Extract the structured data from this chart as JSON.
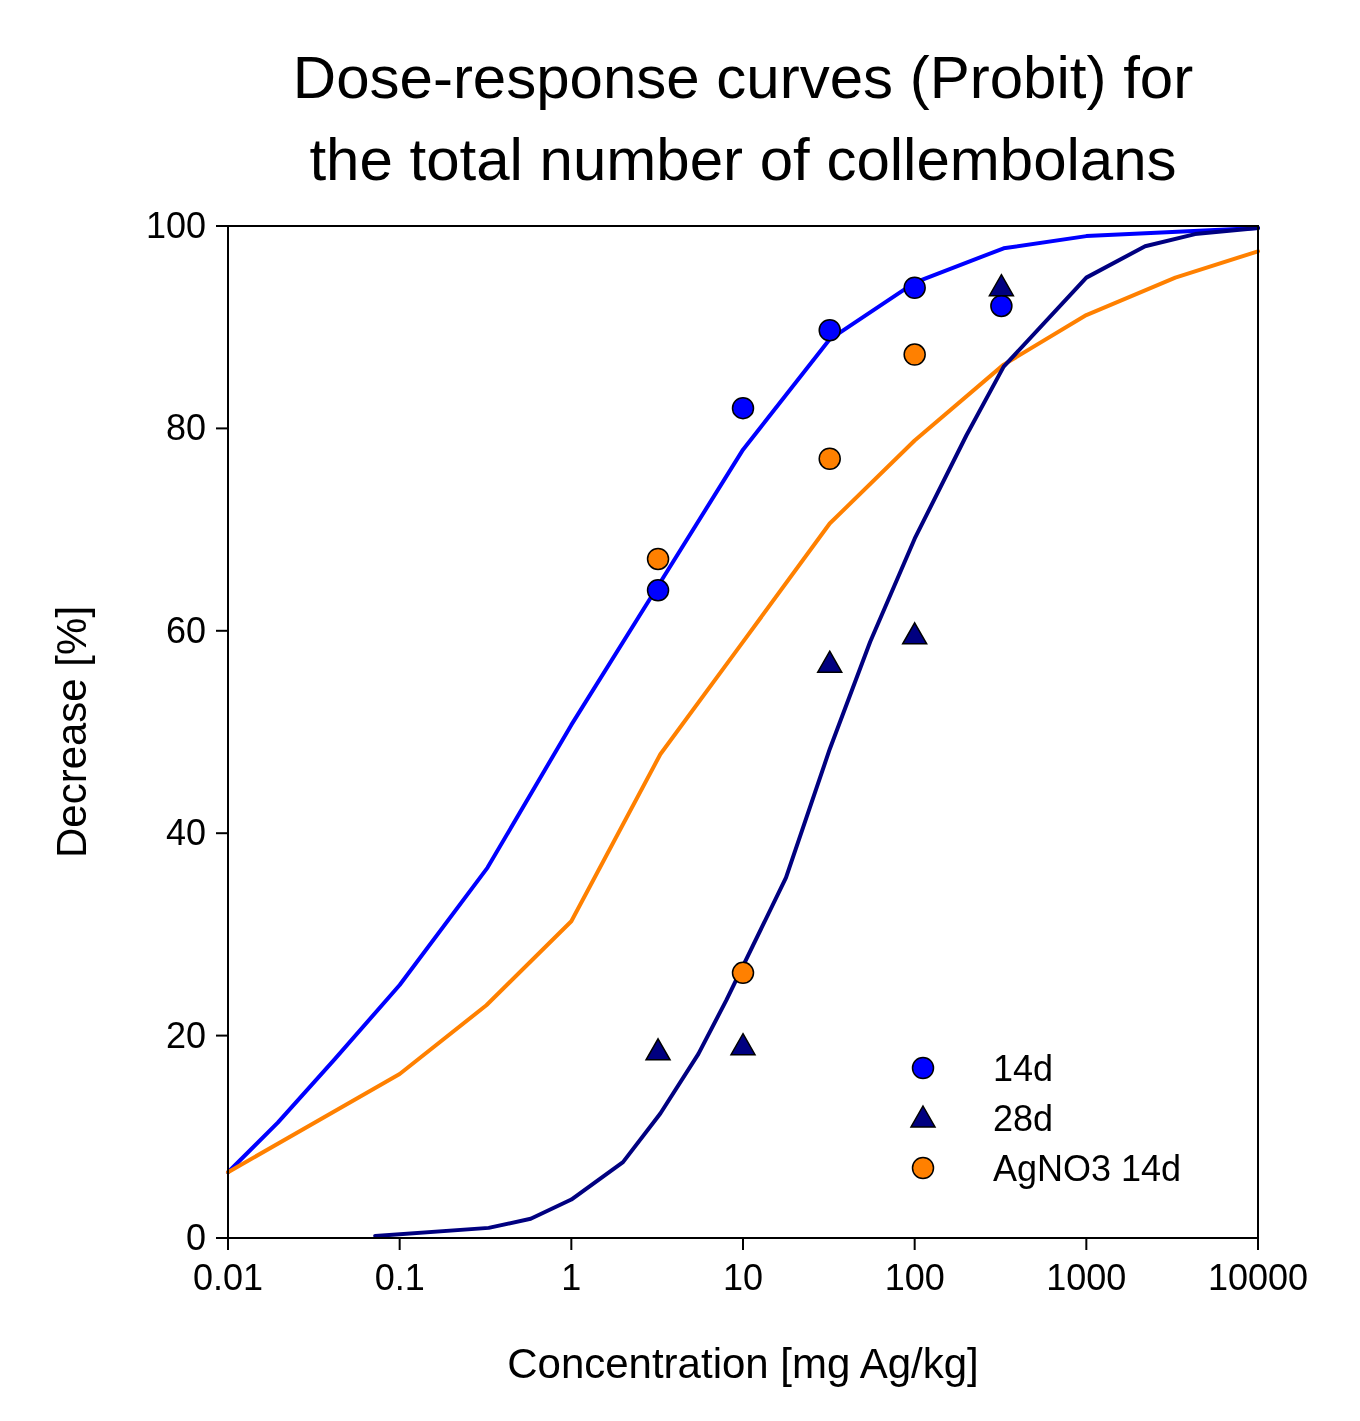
{
  "chart_data": {
    "type": "scatter",
    "title": "Dose-response curves (Probit) for the total number of collembolans",
    "xlabel": "Concentration [mg Ag/kg]",
    "ylabel": "Decrease [%]",
    "log": "x",
    "xlim": [
      0.01,
      10000
    ],
    "xticks": [
      0.01,
      0.1,
      1,
      10,
      100,
      1000,
      10000
    ],
    "ylim": [
      0,
      100
    ],
    "yticks": [
      0,
      20,
      40,
      60,
      80,
      100
    ],
    "grid": false,
    "legend": "bottom right",
    "series": [
      {
        "type": "line",
        "color": "#0000ff",
        "marker": "none",
        "line_style": "solid",
        "x": [
          0.01,
          0.0195,
          0.042,
          0.1,
          0.325,
          1,
          3.3,
          10,
          32,
          100,
          330,
          1000,
          10000
        ],
        "values": [
          6.5,
          11.4,
          17.7,
          25,
          36.6,
          50.7,
          64.8,
          77.9,
          88.8,
          94.4,
          97.8,
          99,
          99.8
        ]
      },
      {
        "type": "line",
        "color": "#ff8000",
        "marker": "none",
        "line_style": "solid",
        "x": [
          0.01,
          0.1,
          0.32,
          1,
          3.3,
          10,
          32,
          100,
          330,
          1000,
          3300,
          10000
        ],
        "values": [
          6.5,
          16.2,
          23,
          31.3,
          47.8,
          58.9,
          70.6,
          78.8,
          86.3,
          91.2,
          94.9,
          97.5
        ]
      },
      {
        "type": "line",
        "color": "#000080",
        "marker": "none",
        "line_style": "solid",
        "x": [
          0.072,
          0.33,
          0.58,
          1,
          2,
          3.3,
          5.5,
          8,
          17.8,
          32,
          55,
          100,
          200,
          330,
          1000,
          2200,
          4300,
          10000
        ],
        "values": [
          0.2,
          1,
          1.9,
          3.8,
          7.5,
          12.3,
          18.2,
          23.5,
          35.6,
          48.3,
          58.9,
          69.1,
          79.3,
          86.1,
          94.9,
          98,
          99.2,
          99.8
        ]
      },
      {
        "name": "14d",
        "color": "#0000ff",
        "marker": "circle",
        "x": [
          3.2,
          10,
          32,
          100,
          320
        ],
        "values": [
          64,
          82,
          89.7,
          93.9,
          92.1
        ]
      },
      {
        "name": "28d",
        "color": "#000080",
        "marker": "triangle",
        "x": [
          3.2,
          10,
          32,
          100,
          320
        ],
        "values": [
          18.5,
          19,
          56.8,
          59.6,
          94
        ]
      },
      {
        "name": "AgNO3 14d",
        "color": "#ff8000",
        "marker": "circle",
        "x": [
          3.2,
          10,
          32,
          100
        ],
        "values": [
          67.1,
          26.2,
          77,
          87.3
        ]
      }
    ]
  }
}
